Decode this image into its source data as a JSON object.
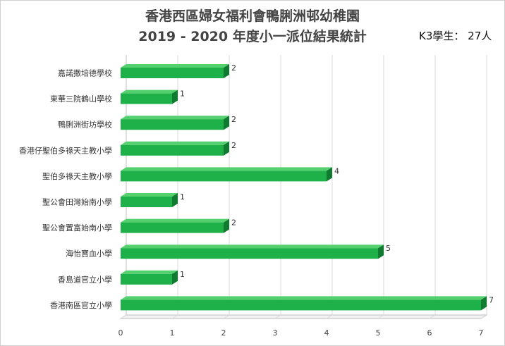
{
  "title_line1": "香港西區婦女福利會鴨脷洲邨幼稚園",
  "title_line2": "2019 - 2020 年度小一派位結果統計",
  "note": "K3學生： 27人",
  "colors": {
    "bar_front": "#1eb14a",
    "bar_top": "#55d06f",
    "bar_side": "#0f7a30",
    "grid": "#d9d9d9",
    "floor": "#bfbfbf"
  },
  "chart_data": {
    "type": "bar",
    "orientation": "horizontal",
    "title": "香港西區婦女福利會鴨脷洲邨幼稚園 2019 - 2020 年度小一派位結果統計",
    "categories": [
      "嘉諾撒培德學校",
      "東華三院鶴山學校",
      "鴨脷洲街坊學校",
      "香港仔聖伯多祿天主教小學",
      "聖伯多祿天主教小學",
      "聖公會田灣始南小學",
      "聖公會置富始南小學",
      "海怡寶血小學",
      "香島道官立小學",
      "香港南區官立小學"
    ],
    "values": [
      2,
      1,
      2,
      2,
      4,
      1,
      2,
      5,
      1,
      7
    ],
    "xlim": [
      0,
      7
    ],
    "xticks": [
      "0",
      "1",
      "2",
      "3",
      "4",
      "5",
      "6",
      "7"
    ],
    "xlabel": "",
    "ylabel": "",
    "grid": true,
    "legend": "none"
  }
}
